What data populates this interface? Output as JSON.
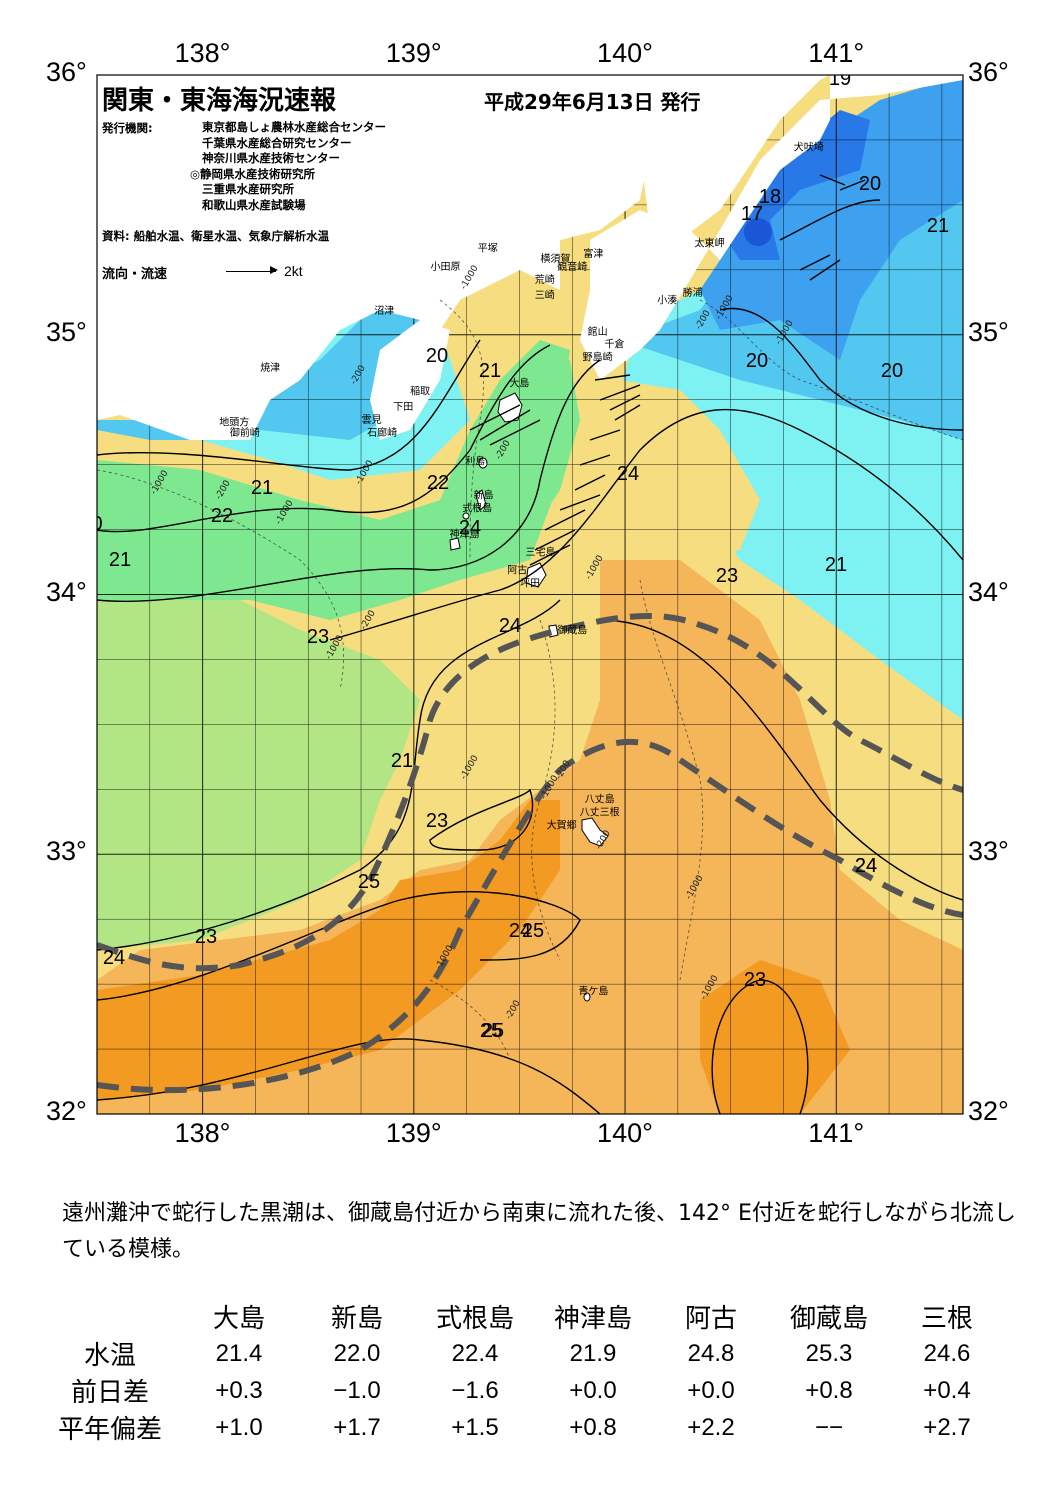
{
  "map": {
    "title": "関東・東海海況速報",
    "issue_date": "平成29年6月13日 発行",
    "publisher_label": "発行機関:",
    "publishers": [
      "東京都島しょ農林水産総合センター",
      "千葉県水産総合研究センター",
      "神奈川県水産技術センター",
      "◎静岡県水産技術研究所",
      "三重県水産研究所",
      "和歌山県水産試験場"
    ],
    "source": "資料: 船舶水温、衛星水温、気象庁解析水温",
    "current_legend": "流向・流速",
    "current_legend_unit": "2kt",
    "lon_ticks": [
      "138°",
      "139°",
      "140°",
      "141°"
    ],
    "lat_ticks": [
      "36°",
      "35°",
      "34°",
      "33°",
      "32°"
    ],
    "lon_values": [
      138,
      139,
      140,
      141
    ],
    "lat_values": [
      36,
      35,
      34,
      33,
      32
    ],
    "extent": {
      "lon": [
        137.5,
        141.6
      ],
      "lat": [
        32,
        36
      ]
    },
    "places": [
      {
        "name": "犬吠埼",
        "lon": 140.87,
        "lat": 35.71
      },
      {
        "name": "太東岬",
        "lon": 140.4,
        "lat": 35.34
      },
      {
        "name": "勝浦",
        "lon": 140.32,
        "lat": 35.15
      },
      {
        "name": "小湊",
        "lon": 140.2,
        "lat": 35.12
      },
      {
        "name": "富津",
        "lon": 139.85,
        "lat": 35.3
      },
      {
        "name": "館山",
        "lon": 139.87,
        "lat": 35.0
      },
      {
        "name": "千倉",
        "lon": 139.95,
        "lat": 34.95
      },
      {
        "name": "野島崎",
        "lon": 139.87,
        "lat": 34.9
      },
      {
        "name": "横須賀",
        "lon": 139.67,
        "lat": 35.28
      },
      {
        "name": "平塚",
        "lon": 139.35,
        "lat": 35.32
      },
      {
        "name": "観音崎",
        "lon": 139.75,
        "lat": 35.25
      },
      {
        "name": "荒崎",
        "lon": 139.62,
        "lat": 35.2
      },
      {
        "name": "三崎",
        "lon": 139.62,
        "lat": 35.14
      },
      {
        "name": "小田原",
        "lon": 139.15,
        "lat": 35.25
      },
      {
        "name": "沼津",
        "lon": 138.86,
        "lat": 35.08
      },
      {
        "name": "焼津",
        "lon": 138.32,
        "lat": 34.86
      },
      {
        "name": "稲取",
        "lon": 139.03,
        "lat": 34.77
      },
      {
        "name": "下田",
        "lon": 138.95,
        "lat": 34.71
      },
      {
        "name": "雲見",
        "lon": 138.8,
        "lat": 34.66
      },
      {
        "name": "石廊崎",
        "lon": 138.85,
        "lat": 34.61
      },
      {
        "name": "地頭方",
        "lon": 138.15,
        "lat": 34.65
      },
      {
        "name": "御前崎",
        "lon": 138.2,
        "lat": 34.61
      },
      {
        "name": "大島",
        "lon": 139.5,
        "lat": 34.8
      },
      {
        "name": "利島",
        "lon": 139.29,
        "lat": 34.5
      },
      {
        "name": "新島",
        "lon": 139.33,
        "lat": 34.37
      },
      {
        "name": "式根島",
        "lon": 139.3,
        "lat": 34.32
      },
      {
        "name": "神津島",
        "lon": 139.24,
        "lat": 34.22
      },
      {
        "name": "三宅島",
        "lon": 139.6,
        "lat": 34.15
      },
      {
        "name": "阿古",
        "lon": 139.49,
        "lat": 34.08
      },
      {
        "name": "坪田",
        "lon": 139.55,
        "lat": 34.03
      },
      {
        "name": "御蔵島",
        "lon": 139.75,
        "lat": 33.85
      },
      {
        "name": "八丈島",
        "lon": 139.88,
        "lat": 33.2
      },
      {
        "name": "八丈三根",
        "lon": 139.88,
        "lat": 33.15
      },
      {
        "name": "大賀郷",
        "lon": 139.7,
        "lat": 33.1
      },
      {
        "name": "青ケ島",
        "lon": 139.85,
        "lat": 32.46
      }
    ],
    "contour_labels": [
      "19",
      "18",
      "17",
      "20",
      "21",
      "20",
      "20",
      "20",
      "21",
      "21",
      "22",
      "21",
      "22",
      "24",
      "24",
      "24",
      "23",
      "21",
      "23",
      "21",
      "23",
      "23",
      "25",
      "24",
      "24",
      "24",
      "23",
      "25",
      "25",
      "25",
      "24",
      "0"
    ],
    "isobath_labels": [
      "-1000",
      "-200",
      "-1000",
      "-1000",
      "-200",
      "-200",
      "-1000",
      "-1000",
      "-200",
      "-1000",
      "-200",
      "-1000",
      "-1000",
      "-1000",
      "-1000",
      "-200",
      "-1000",
      "-1000",
      "-200",
      "-1000",
      "-200"
    ],
    "colors": {
      "t17": "#1a56d6",
      "t18": "#2878e8",
      "t19": "#3ea1f0",
      "t20": "#52c8f0",
      "t21": "#7ef2f2",
      "t22": "#7ee890",
      "t23": "#b2e684",
      "t24": "#f5dd80",
      "t25": "#f5b65a",
      "t26": "#f39a22",
      "land": "#ffffff",
      "kuroshio": "#555555"
    }
  },
  "summary": "遠州灘沖で蛇行した黒潮は、御蔵島付近から南東に流れた後、142° E付近を蛇行しながら北流している模様。",
  "table": {
    "stations": [
      "大島",
      "新島",
      "式根島",
      "神津島",
      "阿古",
      "御蔵島",
      "三根"
    ],
    "rows": [
      {
        "label": "水温",
        "values": [
          "21.4",
          "22.0",
          "22.4",
          "21.9",
          "24.8",
          "25.3",
          "24.6"
        ]
      },
      {
        "label": "前日差",
        "values": [
          "+0.3",
          "−1.0",
          "−1.6",
          "+0.0",
          "+0.0",
          "+0.8",
          "+0.4"
        ]
      },
      {
        "label": "平年偏差",
        "values": [
          "+1.0",
          "+1.7",
          "+1.5",
          "+0.8",
          "+2.2",
          "−−",
          "+2.7"
        ]
      }
    ]
  }
}
